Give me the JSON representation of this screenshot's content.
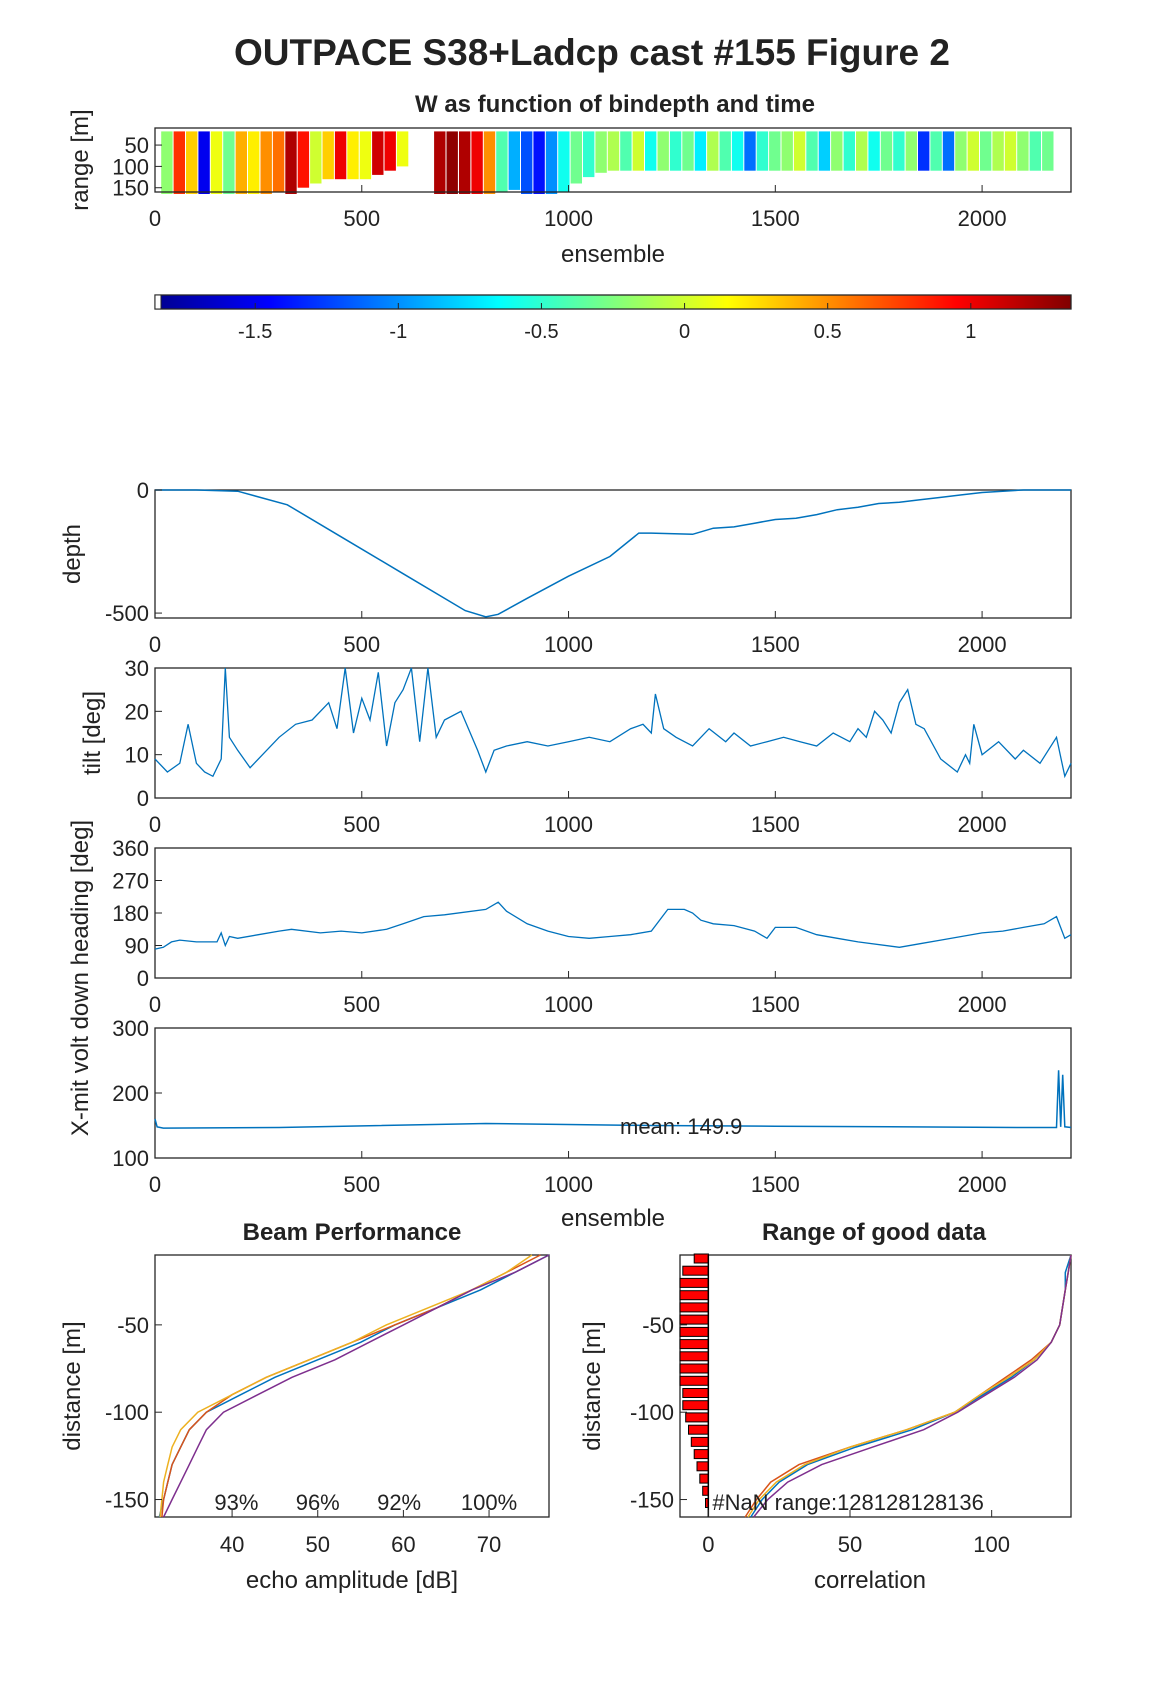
{
  "figure_title": "OUTPACE S38+Ladcp cast #155 Figure 2",
  "colors": {
    "line": "#0072BD",
    "beam": [
      "#0072BD",
      "#D95319",
      "#EDB120",
      "#7E2F8E"
    ],
    "nan_bar": "#ff0000"
  },
  "chart_data": [
    {
      "id": "w-image",
      "type": "heatmap",
      "title": "W as function of bindepth and time",
      "xlabel": "ensemble",
      "ylabel": "range [m]",
      "xlim": [
        0,
        2215
      ],
      "ylim": [
        10,
        160
      ],
      "y_reversed": true,
      "xticks": [
        0,
        500,
        1000,
        1500,
        2000
      ],
      "yticks": [
        50,
        100,
        150
      ],
      "x": [
        30,
        60,
        90,
        120,
        150,
        180,
        210,
        240,
        270,
        300,
        330,
        360,
        390,
        420,
        450,
        480,
        510,
        540,
        570,
        600,
        630,
        660,
        690,
        720,
        750,
        780,
        810,
        840,
        870,
        900,
        930,
        960,
        990,
        1020,
        1050,
        1080,
        1110,
        1140,
        1170,
        1200,
        1230,
        1260,
        1290,
        1320,
        1350,
        1380,
        1410,
        1440,
        1470,
        1500,
        1530,
        1560,
        1590,
        1620,
        1650,
        1680,
        1710,
        1740,
        1770,
        1800,
        1830,
        1860,
        1890,
        1920,
        1950,
        1980,
        2010,
        2040,
        2070,
        2100,
        2130,
        2160,
        2190
      ],
      "values": [
        -0.2,
        0.8,
        0.3,
        -1.5,
        0.1,
        -0.3,
        0.4,
        0.2,
        0.5,
        0.6,
        1.2,
        0.9,
        0.0,
        0.3,
        1.0,
        0.2,
        0.1,
        1.1,
        1.0,
        0.1,
        null,
        null,
        1.2,
        1.3,
        1.2,
        1.0,
        0.5,
        -0.4,
        -0.9,
        -1.2,
        -1.4,
        -1.0,
        -0.6,
        -0.3,
        -0.5,
        -0.2,
        -0.1,
        -0.4,
        0.0,
        -0.6,
        -0.2,
        -0.5,
        -0.3,
        -0.7,
        -0.1,
        -0.4,
        -0.6,
        -1.1,
        -0.5,
        -0.3,
        -0.2,
        0.0,
        -0.4,
        -0.8,
        -0.2,
        -0.5,
        -0.1,
        -0.6,
        -0.3,
        -0.5,
        -0.2,
        -1.3,
        -0.4,
        -1.1,
        -0.2,
        0.0,
        -0.3,
        -0.1,
        0.0,
        -0.2,
        -0.4,
        -0.3,
        null
      ],
      "bottom_range": [
        175,
        175,
        170,
        168,
        165,
        165,
        170,
        172,
        165,
        160,
        165,
        150,
        140,
        130,
        130,
        130,
        130,
        120,
        110,
        100,
        null,
        null,
        175,
        180,
        180,
        170,
        165,
        160,
        155,
        165,
        175,
        170,
        160,
        140,
        125,
        115,
        110,
        110,
        110,
        110,
        110,
        110,
        110,
        110,
        110,
        110,
        110,
        110,
        110,
        110,
        110,
        110,
        110,
        110,
        110,
        110,
        110,
        110,
        110,
        110,
        110,
        110,
        110,
        110,
        110,
        110,
        110,
        110,
        110,
        110,
        110,
        110,
        null
      ]
    },
    {
      "id": "colorbar",
      "type": "heatmap",
      "clim": [
        -1.85,
        1.35
      ],
      "ticks": [
        "-1.5",
        "-1",
        "-0.5",
        "0",
        "0.5",
        "1"
      ],
      "tick_values": [
        -1.5,
        -1,
        -0.5,
        0,
        0.5,
        1
      ]
    },
    {
      "id": "depth",
      "type": "line",
      "ylabel": "depth",
      "xlim": [
        0,
        2215
      ],
      "ylim": [
        -520,
        0
      ],
      "xticks": [
        0,
        500,
        1000,
        1500,
        2000
      ],
      "yticks": [
        -500,
        0
      ],
      "x": [
        0,
        100,
        200,
        320,
        450,
        600,
        750,
        800,
        830,
        900,
        1000,
        1100,
        1170,
        1200,
        1300,
        1350,
        1400,
        1450,
        1500,
        1550,
        1600,
        1650,
        1700,
        1750,
        1800,
        1850,
        1900,
        1950,
        2000,
        2050,
        2100,
        2215
      ],
      "y": [
        0,
        0,
        -5,
        -60,
        -190,
        -340,
        -490,
        -515,
        -505,
        -440,
        -350,
        -270,
        -175,
        -175,
        -180,
        -155,
        -150,
        -135,
        -120,
        -115,
        -100,
        -80,
        -70,
        -55,
        -50,
        -40,
        -30,
        -20,
        -10,
        -5,
        0,
        0
      ]
    },
    {
      "id": "tilt",
      "type": "line",
      "ylabel": "tilt [deg]",
      "xlim": [
        0,
        2215
      ],
      "ylim": [
        0,
        30
      ],
      "xticks": [
        0,
        500,
        1000,
        1500,
        2000
      ],
      "yticks": [
        0,
        10,
        20,
        30
      ],
      "x": [
        0,
        30,
        60,
        80,
        100,
        120,
        140,
        160,
        170,
        180,
        200,
        230,
        260,
        300,
        340,
        380,
        420,
        440,
        460,
        480,
        500,
        520,
        540,
        560,
        580,
        600,
        620,
        640,
        660,
        680,
        700,
        740,
        780,
        800,
        820,
        850,
        900,
        950,
        1000,
        1050,
        1100,
        1150,
        1180,
        1200,
        1210,
        1230,
        1260,
        1300,
        1340,
        1380,
        1400,
        1440,
        1480,
        1520,
        1560,
        1600,
        1640,
        1680,
        1700,
        1720,
        1740,
        1760,
        1780,
        1800,
        1820,
        1840,
        1860,
        1900,
        1940,
        1960,
        1970,
        1980,
        2000,
        2040,
        2080,
        2100,
        2140,
        2180,
        2200,
        2215
      ],
      "y": [
        9,
        6,
        8,
        17,
        8,
        6,
        5,
        9,
        30,
        14,
        11,
        7,
        10,
        14,
        17,
        18,
        22,
        16,
        30,
        15,
        23,
        18,
        29,
        12,
        22,
        25,
        30,
        13,
        30,
        14,
        18,
        20,
        11,
        6,
        11,
        12,
        13,
        12,
        13,
        14,
        13,
        16,
        17,
        15,
        24,
        16,
        14,
        12,
        16,
        13,
        15,
        12,
        13,
        14,
        13,
        12,
        15,
        13,
        16,
        14,
        20,
        18,
        15,
        22,
        25,
        17,
        16,
        9,
        6,
        10,
        8,
        17,
        10,
        13,
        9,
        11,
        8,
        14,
        5,
        8
      ]
    },
    {
      "id": "heading",
      "type": "line",
      "ylabel": "X-mit volt down heading [deg]",
      "xlim": [
        0,
        2215
      ],
      "ylim": [
        0,
        360
      ],
      "xticks": [
        0,
        500,
        1000,
        1500,
        2000
      ],
      "yticks": [
        0,
        90,
        180,
        270,
        360
      ],
      "x": [
        0,
        20,
        40,
        60,
        100,
        150,
        160,
        170,
        180,
        200,
        250,
        300,
        330,
        400,
        450,
        500,
        560,
        600,
        650,
        700,
        800,
        830,
        850,
        900,
        950,
        1000,
        1050,
        1100,
        1150,
        1200,
        1240,
        1280,
        1300,
        1320,
        1350,
        1400,
        1450,
        1480,
        1500,
        1550,
        1600,
        1650,
        1700,
        1800,
        1850,
        1900,
        1950,
        2000,
        2050,
        2100,
        2150,
        2180,
        2200,
        2215
      ],
      "y": [
        80,
        85,
        100,
        105,
        100,
        100,
        125,
        90,
        115,
        110,
        120,
        130,
        135,
        125,
        130,
        125,
        135,
        150,
        170,
        175,
        190,
        210,
        185,
        150,
        130,
        115,
        110,
        115,
        120,
        130,
        190,
        190,
        180,
        160,
        150,
        145,
        130,
        110,
        140,
        140,
        120,
        110,
        100,
        85,
        95,
        105,
        115,
        125,
        130,
        140,
        150,
        170,
        110,
        120
      ]
    },
    {
      "id": "volt",
      "type": "line",
      "xlabel": "ensemble",
      "xlim": [
        0,
        2215
      ],
      "ylim": [
        100,
        300
      ],
      "xticks": [
        0,
        500,
        1000,
        1500,
        2000
      ],
      "yticks": [
        100,
        200,
        300
      ],
      "annotation": "mean: 149.9",
      "x": [
        0,
        5,
        20,
        300,
        800,
        1200,
        1500,
        2100,
        2180,
        2185,
        2190,
        2195,
        2200,
        2215
      ],
      "y": [
        160,
        148,
        146,
        147,
        153,
        150,
        149,
        147,
        147,
        235,
        148,
        228,
        148,
        147
      ]
    },
    {
      "id": "beam",
      "type": "line",
      "title": "Beam Performance",
      "xlabel": "echo amplitude [dB]",
      "ylabel": "distance [m]",
      "xlim": [
        31,
        77
      ],
      "ylim": [
        -160,
        -10
      ],
      "xticks": [
        40,
        50,
        60,
        70
      ],
      "yticks": [
        -150,
        -100,
        -50
      ],
      "annotations": [
        "93%",
        "96%",
        "92%",
        "100%"
      ],
      "annotation_x": [
        40.5,
        50,
        59.5,
        70
      ],
      "series": [
        {
          "y": [
            -10,
            -20,
            -30,
            -40,
            -50,
            -60,
            -70,
            -80,
            -90,
            -100,
            -110,
            -120,
            -130,
            -140,
            -150,
            -160
          ],
          "x": [
            77,
            73,
            69,
            64,
            59,
            55,
            50,
            45,
            41,
            37,
            35,
            34,
            33,
            32.5,
            32,
            31.5
          ]
        },
        {
          "y": [
            -10,
            -20,
            -30,
            -40,
            -50,
            -60,
            -70,
            -80,
            -90,
            -100,
            -110,
            -120,
            -130,
            -140,
            -150,
            -160
          ],
          "x": [
            76,
            72,
            68,
            64,
            59,
            54,
            49,
            44,
            40,
            37,
            35,
            34,
            33,
            32.5,
            32,
            31.8
          ]
        },
        {
          "y": [
            -10,
            -20,
            -30,
            -40,
            -50,
            -60,
            -70,
            -80,
            -90,
            -100,
            -110,
            -120,
            -130,
            -140,
            -150,
            -160
          ],
          "x": [
            75,
            72,
            68,
            63,
            58,
            54,
            49,
            44,
            40,
            36,
            34,
            33,
            32.5,
            32,
            31.8,
            31.6
          ]
        },
        {
          "y": [
            -10,
            -20,
            -30,
            -40,
            -50,
            -60,
            -70,
            -80,
            -90,
            -100,
            -110,
            -120,
            -130,
            -140,
            -150,
            -160
          ],
          "x": [
            77,
            73,
            68,
            64,
            60,
            56,
            52,
            47,
            43,
            39,
            37,
            36,
            35,
            34,
            33,
            32
          ]
        }
      ]
    },
    {
      "id": "corr",
      "type": "line",
      "title": "Range of good data",
      "xlabel": "correlation",
      "ylabel": "distance [m]",
      "xlim": [
        -10,
        128
      ],
      "ylim": [
        -160,
        -10
      ],
      "xticks": [
        0,
        50,
        100
      ],
      "yticks": [
        -150,
        -100,
        -50
      ],
      "annotation": "#NaN range:128128128136",
      "nan_bars": {
        "y": [
          -12,
          -19,
          -26,
          -33,
          -40,
          -47,
          -54,
          -61,
          -68,
          -75,
          -82,
          -89,
          -96,
          -103,
          -110,
          -117,
          -124,
          -131,
          -138,
          -145,
          -152
        ],
        "x": [
          -5,
          -9,
          -10,
          -10,
          -10,
          -10,
          -10,
          -10,
          -10,
          -10,
          -10,
          -9,
          -9,
          -8,
          -7,
          -6,
          -5,
          -4,
          -3,
          -2,
          -1
        ]
      },
      "series": [
        {
          "y": [
            -10,
            -20,
            -30,
            -40,
            -50,
            -60,
            -70,
            -80,
            -90,
            -100,
            -110,
            -120,
            -130,
            -140,
            -150,
            -160
          ],
          "x": [
            128,
            126,
            126,
            125,
            124,
            121,
            115,
            107,
            97,
            87,
            72,
            52,
            35,
            25,
            19,
            15
          ]
        },
        {
          "y": [
            -10,
            -20,
            -30,
            -40,
            -50,
            -60,
            -70,
            -80,
            -90,
            -100,
            -110,
            -120,
            -130,
            -140,
            -150,
            -160
          ],
          "x": [
            128,
            127,
            126,
            125,
            124,
            121,
            114,
            105,
            96,
            87,
            70,
            50,
            32,
            22,
            17,
            13
          ]
        },
        {
          "y": [
            -10,
            -20,
            -30,
            -40,
            -50,
            -60,
            -70,
            -80,
            -90,
            -100,
            -110,
            -120,
            -130,
            -140,
            -150,
            -160
          ],
          "x": [
            128,
            127,
            126,
            125,
            124,
            121,
            115,
            106,
            96,
            87,
            70,
            50,
            34,
            24,
            18,
            14
          ]
        },
        {
          "y": [
            -10,
            -20,
            -30,
            -40,
            -50,
            -60,
            -70,
            -80,
            -90,
            -100,
            -110,
            -120,
            -130,
            -140,
            -150,
            -160
          ],
          "x": [
            128,
            127,
            126,
            125,
            124,
            121,
            116,
            108,
            98,
            88,
            76,
            58,
            40,
            28,
            21,
            16
          ]
        }
      ]
    }
  ]
}
